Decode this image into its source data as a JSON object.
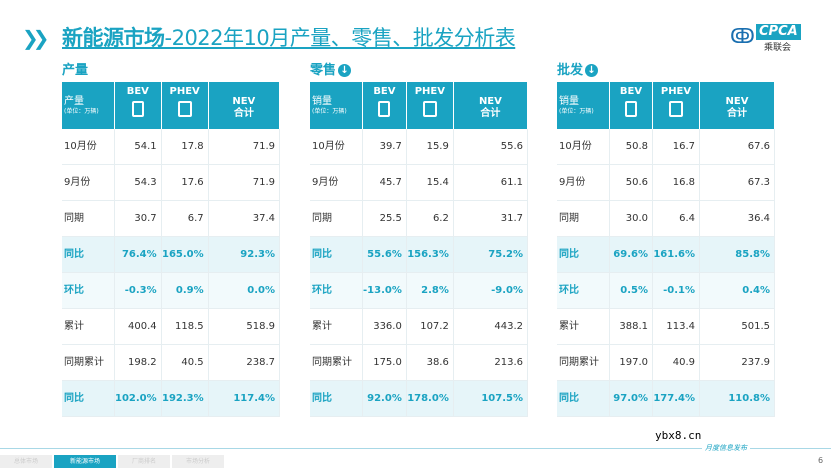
{
  "title": {
    "bold": "新能源市场",
    "rest": "-2022年10月产量、零售、批发分析表"
  },
  "logo": {
    "text": "CPCA",
    "cn": "乘联会"
  },
  "headers": {
    "bev": "BEV",
    "phev": "PHEV",
    "nev": "NEV",
    "nev_sub": "合计",
    "unit": "(单位：万辆)"
  },
  "sections": [
    {
      "title": "产量",
      "label": "产量",
      "rows": [
        [
          "10月份",
          "54.1",
          "17.8",
          "71.9"
        ],
        [
          "9月份",
          "54.3",
          "17.6",
          "71.9"
        ],
        [
          "同期",
          "30.7",
          "6.7",
          "37.4"
        ],
        [
          "同比",
          "76.4%",
          "165.0%",
          "92.3%"
        ],
        [
          "环比",
          "-0.3%",
          "0.9%",
          "0.0%"
        ],
        [
          "累计",
          "400.4",
          "118.5",
          "518.9"
        ],
        [
          "同期累计",
          "198.2",
          "40.5",
          "238.7"
        ],
        [
          "同比",
          "102.0%",
          "192.3%",
          "117.4%"
        ]
      ]
    },
    {
      "title": "零售",
      "label": "销量",
      "rows": [
        [
          "10月份",
          "39.7",
          "15.9",
          "55.6"
        ],
        [
          "9月份",
          "45.7",
          "15.4",
          "61.1"
        ],
        [
          "同期",
          "25.5",
          "6.2",
          "31.7"
        ],
        [
          "同比",
          "55.6%",
          "156.3%",
          "75.2%"
        ],
        [
          "环比",
          "-13.0%",
          "2.8%",
          "-9.0%"
        ],
        [
          "累计",
          "336.0",
          "107.2",
          "443.2"
        ],
        [
          "同期累计",
          "175.0",
          "38.6",
          "213.6"
        ],
        [
          "同比",
          "92.0%",
          "178.0%",
          "107.5%"
        ]
      ]
    },
    {
      "title": "批发",
      "label": "销量",
      "rows": [
        [
          "10月份",
          "50.8",
          "16.7",
          "67.6"
        ],
        [
          "9月份",
          "50.6",
          "16.8",
          "67.3"
        ],
        [
          "同期",
          "30.0",
          "6.4",
          "36.4"
        ],
        [
          "同比",
          "69.6%",
          "161.6%",
          "85.8%"
        ],
        [
          "环比",
          "0.5%",
          "-0.1%",
          "0.4%"
        ],
        [
          "累计",
          "388.1",
          "113.4",
          "501.5"
        ],
        [
          "同期累计",
          "197.0",
          "40.9",
          "237.9"
        ],
        [
          "同比",
          "97.0%",
          "177.4%",
          "110.8%"
        ]
      ]
    }
  ],
  "footer": {
    "tabs": [
      "总体市场",
      "新能源市场",
      "厂商排名",
      "市场分析"
    ],
    "active": 1,
    "monthly": "月度信息发布",
    "page": "6",
    "watermark": "ybx8.cn"
  },
  "colors": {
    "accent": "#1aa3c2"
  }
}
